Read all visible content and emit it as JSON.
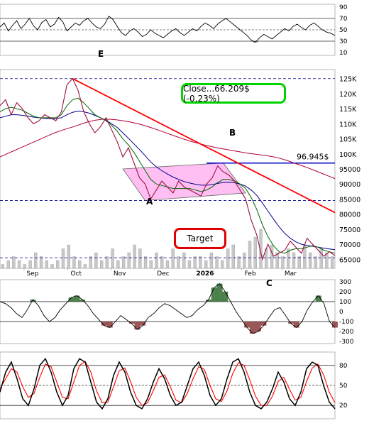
{
  "chart_data": [
    {
      "panel": "rsi",
      "type": "line",
      "y_ticks": [
        90,
        70,
        50,
        30,
        10
      ],
      "reference_lines": [
        70,
        50,
        30
      ],
      "series": [
        {
          "values": [
            55,
            62,
            48,
            58,
            66,
            52,
            60,
            70,
            57,
            50,
            63,
            68,
            55,
            60,
            72,
            64,
            48,
            55,
            62,
            58,
            66,
            70,
            62,
            55,
            52,
            60,
            74,
            68,
            56,
            45,
            40,
            48,
            52,
            46,
            38,
            42,
            50,
            44,
            40,
            36,
            42,
            48,
            52,
            45,
            40,
            46,
            52,
            48,
            56,
            62,
            58,
            52,
            60,
            66,
            70,
            64,
            58,
            52,
            46,
            40,
            32,
            28,
            36,
            42,
            38,
            34,
            40,
            46,
            52,
            48,
            56,
            60,
            54,
            50,
            58,
            62,
            56,
            50,
            46,
            44,
            40
          ]
        }
      ],
      "annotations": [
        "E"
      ]
    },
    {
      "panel": "price",
      "type": "line",
      "y_ticks": [
        "125K",
        "120K",
        "115K",
        "110K",
        "105K",
        "100K",
        "95000",
        "90000",
        "85000",
        "80000",
        "75000",
        "70000",
        "65000"
      ],
      "x_ticks": [
        "Sep",
        "Oct",
        "Nov",
        "Dec",
        "2026",
        "Feb",
        "Mar"
      ],
      "series": [
        {
          "type": "candle-line",
          "color": "#9c1040",
          "values": [
            116000,
            118000,
            113000,
            117000,
            115000,
            112000,
            110000,
            111000,
            113000,
            112000,
            111000,
            114000,
            123000,
            125000,
            121000,
            114000,
            110000,
            107000,
            109000,
            112000,
            108000,
            104000,
            99000,
            102000,
            97000,
            92000,
            90000,
            85000,
            88000,
            91000,
            89000,
            87000,
            91000,
            89000,
            88000,
            87000,
            86000,
            90000,
            92000,
            96000,
            94000,
            93000,
            91000,
            88000,
            85000,
            78000,
            73000,
            65000,
            70000,
            66000,
            67000,
            68000,
            71000,
            69000,
            67000,
            72000,
            70000,
            68000,
            66000,
            67500,
            66209
          ]
        },
        {
          "type": "ma-short",
          "color": "#006400",
          "values": [
            114000,
            115000,
            115500,
            115000,
            114500,
            113500,
            112500,
            112000,
            112000,
            112000,
            112000,
            113000,
            116000,
            118000,
            118500,
            117000,
            115000,
            113000,
            112000,
            111000,
            109500,
            107500,
            105000,
            103000,
            100500,
            97500,
            94500,
            91500,
            90000,
            89500,
            89000,
            88500,
            88500,
            88500,
            88500,
            88000,
            87500,
            88000,
            89000,
            90500,
            91500,
            91500,
            91000,
            90000,
            88500,
            85500,
            81500,
            76500,
            72500,
            69500,
            67500,
            67000,
            68000,
            68500,
            68500,
            69000,
            69500,
            69000,
            68000,
            67500,
            67000
          ]
        },
        {
          "type": "ma-medium",
          "color": "#00008b",
          "values": [
            112000,
            112500,
            113000,
            113000,
            112800,
            112500,
            112200,
            112000,
            111800,
            111700,
            111700,
            112000,
            113000,
            113800,
            114200,
            114000,
            113500,
            112800,
            112000,
            111200,
            110000,
            108800,
            107000,
            105200,
            103300,
            101400,
            99400,
            97300,
            95700,
            94400,
            93300,
            92300,
            91500,
            90800,
            90300,
            89900,
            89600,
            89600,
            89800,
            90200,
            90500,
            90600,
            90400,
            90000,
            89300,
            88000,
            86200,
            83700,
            81000,
            78300,
            75800,
            73600,
            72000,
            70800,
            70000,
            69600,
            69300,
            69000,
            68700,
            68400,
            68200
          ]
        },
        {
          "type": "ma-long",
          "color": "#b00030",
          "values": [
            99000,
            100000,
            101000,
            102000,
            103000,
            104000,
            105000,
            106000,
            107000,
            107800,
            108500,
            109200,
            110000,
            110700,
            111200,
            111500,
            111500,
            111300,
            111000,
            110600,
            110100,
            109500,
            108800,
            108000,
            107200,
            106400,
            105600,
            104800,
            104100,
            103500,
            102900,
            102400,
            101900,
            101500,
            101100,
            100700,
            100300,
            100000,
            99700,
            99400,
            99000,
            98500,
            97800,
            97000,
            96200,
            95400,
            94500,
            93600,
            92700,
            91800
          ]
        }
      ],
      "reference_lines": [
        125000,
        84500,
        65500
      ],
      "resistance_level": "96.945$",
      "close_label": "Close...66.209$ (-0,23%)",
      "target_label": "Target",
      "annotations": [
        "A",
        "B",
        "C"
      ],
      "volume": [
        1,
        2,
        3,
        2,
        1,
        2,
        4,
        3,
        2,
        1,
        2,
        5,
        6,
        3,
        2,
        1,
        3,
        4,
        2,
        3,
        5,
        2,
        3,
        4,
        6,
        5,
        3,
        2,
        4,
        3,
        2,
        5,
        3,
        4,
        2,
        3,
        3,
        2,
        4,
        3,
        2,
        5,
        6,
        3,
        4,
        7,
        8,
        10,
        5,
        6,
        4,
        3,
        5,
        4,
        3,
        6,
        4,
        3,
        5,
        4,
        3
      ],
      "colors": {
        "trendline": "#ff0000",
        "wedge_fill": "#ffaaf0",
        "dashed_lines": "#00008b",
        "resistance_line": "#0000cd",
        "price": "#9c1040"
      }
    },
    {
      "panel": "cci",
      "type": "line",
      "y_ticks": [
        300,
        200,
        100,
        0,
        -100,
        -200,
        -300
      ],
      "reference_lines": [
        100,
        -100
      ],
      "series": [
        {
          "values": [
            100,
            80,
            40,
            -20,
            -60,
            20,
            120,
            60,
            -40,
            -100,
            -60,
            20,
            80,
            140,
            160,
            120,
            60,
            -20,
            -80,
            -140,
            -160,
            -100,
            -40,
            -80,
            -120,
            -180,
            -140,
            -60,
            -20,
            40,
            80,
            60,
            20,
            -20,
            -60,
            -40,
            20,
            60,
            120,
            240,
            280,
            200,
            100,
            0,
            -80,
            -160,
            -220,
            -200,
            -140,
            -60,
            20,
            40,
            -40,
            -120,
            -160,
            -100,
            20,
            100,
            160,
            80,
            -100,
            -160
          ]
        }
      ],
      "colors": {
        "positive": "#2e6b2e",
        "negative": "#8a3a3a"
      }
    },
    {
      "panel": "stochastic",
      "type": "line",
      "y_ticks": [
        80,
        50,
        20
      ],
      "reference_lines": [
        80,
        50,
        20
      ],
      "series": [
        {
          "color": "#000000",
          "values": [
            40,
            70,
            85,
            60,
            30,
            20,
            45,
            80,
            90,
            70,
            40,
            20,
            35,
            75,
            90,
            85,
            55,
            25,
            15,
            30,
            65,
            85,
            70,
            40,
            20,
            15,
            30,
            55,
            75,
            60,
            35,
            20,
            25,
            50,
            75,
            85,
            65,
            35,
            20,
            30,
            60,
            85,
            90,
            70,
            40,
            20,
            15,
            25,
            45,
            70,
            55,
            30,
            20,
            40,
            75,
            85,
            80,
            50,
            25,
            15
          ]
        },
        {
          "color": "#ff0000",
          "values": [
            45,
            60,
            75,
            70,
            48,
            32,
            38,
            62,
            82,
            78,
            55,
            32,
            30,
            55,
            80,
            86,
            70,
            42,
            24,
            25,
            48,
            72,
            76,
            56,
            32,
            20,
            24,
            42,
            62,
            66,
            48,
            28,
            24,
            38,
            60,
            78,
            74,
            50,
            30,
            26,
            42,
            68,
            84,
            80,
            58,
            34,
            20,
            20,
            34,
            56,
            62,
            44,
            28,
            32,
            56,
            76,
            82,
            66,
            40,
            24
          ]
        }
      ]
    }
  ]
}
